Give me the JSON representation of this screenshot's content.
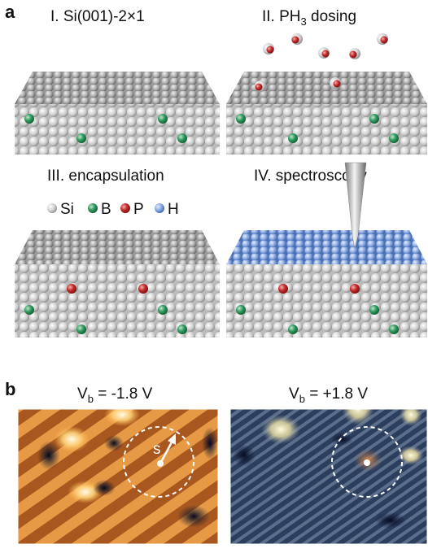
{
  "panel_a": {
    "label": "a",
    "steps": [
      {
        "title": "I. Si(001)-2×1"
      },
      {
        "title": "II. PH",
        "subscript": "3",
        "title_end": " dosing"
      },
      {
        "title": "III. encapsulation"
      },
      {
        "title": "IV. spectroscopy"
      }
    ],
    "legend": [
      "Si",
      "B",
      "P",
      "H"
    ]
  },
  "panel_b": {
    "label": "b",
    "images": [
      {
        "symbol": "V",
        "subscript": "b",
        "bias": " = -1.8 V"
      },
      {
        "symbol": "V",
        "subscript": "b",
        "bias": " = +1.8 V"
      }
    ],
    "distance_label": "s"
  }
}
